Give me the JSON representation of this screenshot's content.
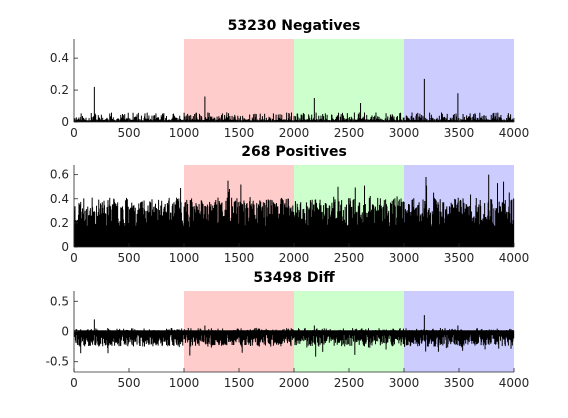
{
  "chart_data": [
    {
      "type": "bar",
      "title": "53230 Negatives",
      "xlim": [
        0,
        4000
      ],
      "ylim": [
        0,
        0.52
      ],
      "xticks": [
        "0",
        "500",
        "1000",
        "1500",
        "2000",
        "2500",
        "3000",
        "3500",
        "4000"
      ],
      "yticks": [
        {
          "v": 0,
          "label": "0"
        },
        {
          "v": 0.2,
          "label": "0.2"
        },
        {
          "v": 0.4,
          "label": "0.4"
        }
      ],
      "bands": [
        {
          "x0": 1000,
          "x1": 2000,
          "color": "#ffcccc"
        },
        {
          "x0": 2000,
          "x1": 3000,
          "color": "#ccffcc"
        },
        {
          "x0": 3000,
          "x1": 4000,
          "color": "#ccccff"
        }
      ],
      "peaks": [
        [
          185,
          0.22
        ],
        [
          1190,
          0.16
        ],
        [
          2185,
          0.15
        ],
        [
          3185,
          0.27
        ],
        [
          3490,
          0.18
        ]
      ],
      "pattern": "neg",
      "base": 0.01,
      "noise": 0.05,
      "seed": 11
    },
    {
      "type": "bar",
      "title": "268 Positives",
      "xlim": [
        0,
        4000
      ],
      "ylim": [
        0,
        0.68
      ],
      "xticks": [
        "0",
        "500",
        "1000",
        "1500",
        "2000",
        "2500",
        "3000",
        "3500",
        "4000"
      ],
      "yticks": [
        {
          "v": 0,
          "label": "0"
        },
        {
          "v": 0.2,
          "label": "0.2"
        },
        {
          "v": 0.4,
          "label": "0.4"
        },
        {
          "v": 0.6,
          "label": "0.6"
        }
      ],
      "bands": [
        {
          "x0": 1000,
          "x1": 2000,
          "color": "#ffcccc"
        },
        {
          "x0": 2000,
          "x1": 3000,
          "color": "#ccffcc"
        },
        {
          "x0": 3000,
          "x1": 4000,
          "color": "#ccccff"
        }
      ],
      "peaks": [
        [
          1400,
          0.55
        ],
        [
          2400,
          0.5
        ],
        [
          3200,
          0.58
        ],
        [
          3770,
          0.6
        ],
        [
          3850,
          0.53
        ]
      ],
      "pattern": "pos",
      "base": 0.16,
      "noise": 0.25,
      "seed": 23
    },
    {
      "type": "bar",
      "title": "53498 Diff",
      "xlim": [
        0,
        4000
      ],
      "ylim": [
        -0.67,
        0.67
      ],
      "xticks": [
        "0",
        "500",
        "1000",
        "1500",
        "2000",
        "2500",
        "3000",
        "3500",
        "4000"
      ],
      "yticks": [
        {
          "v": -0.5,
          "label": "-0.5"
        },
        {
          "v": 0,
          "label": "0"
        },
        {
          "v": 0.5,
          "label": "0.5"
        }
      ],
      "bands": [
        {
          "x0": 1000,
          "x1": 2000,
          "color": "#ffcccc"
        },
        {
          "x0": 2000,
          "x1": 3000,
          "color": "#ccffcc"
        },
        {
          "x0": 3000,
          "x1": 4000,
          "color": "#ccccff"
        }
      ],
      "peaks": [
        [
          185,
          0.2
        ],
        [
          1190,
          0.1
        ],
        [
          2185,
          0.1
        ],
        [
          3185,
          0.27
        ],
        [
          3490,
          0.1
        ]
      ],
      "pattern": "diff",
      "base": 0.0,
      "noise": 0.22,
      "seed": 37
    }
  ]
}
